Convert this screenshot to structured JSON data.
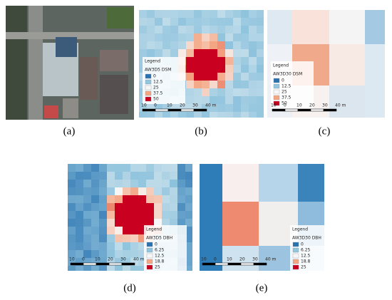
{
  "panels": [
    {
      "label": "(a)"
    },
    {
      "label": "(b)",
      "legend": {
        "title": "Legend",
        "subtitle": "AW3D5 DSM",
        "items": [
          "0",
          "12.5",
          "25",
          "37.5",
          "50"
        ]
      },
      "scale": [
        "10",
        "0",
        "10",
        "20",
        "30",
        "40 m"
      ]
    },
    {
      "label": "(c)",
      "legend": {
        "title": "Legend",
        "subtitle": "AW3D30 DSM",
        "items": [
          "0",
          "12.5",
          "25",
          "37.5",
          "50"
        ]
      },
      "scale": [
        "10",
        "0",
        "10",
        "20",
        "30",
        "40 m"
      ]
    },
    {
      "label": "(d)",
      "legend": {
        "title": "Legend",
        "subtitle": "AW3D5 DBH",
        "items": [
          "0",
          "6.25",
          "12.5",
          "18.8",
          "25"
        ]
      },
      "scale": [
        "10",
        "0",
        "10",
        "20",
        "30",
        "40 m"
      ]
    },
    {
      "label": "(e)",
      "legend": {
        "title": "Legend",
        "subtitle": "AW3D30 DBH",
        "items": [
          "0",
          "6.25",
          "12.5",
          "18.8",
          "25"
        ]
      },
      "scale": [
        "10",
        "0",
        "10",
        "20",
        "30",
        "40 m"
      ]
    }
  ],
  "legend_colors": [
    "#2a72b0",
    "#92c5de",
    "#f7f7f7",
    "#f4a582",
    "#ca0020"
  ]
}
